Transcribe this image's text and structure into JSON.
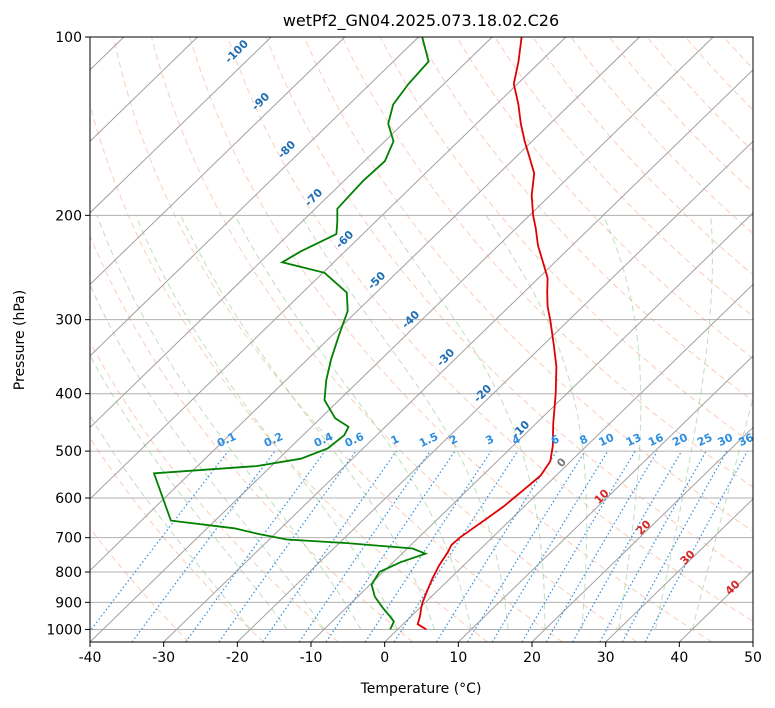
{
  "chart_data": {
    "type": "skew-t",
    "title": "wetPf2_GN04.2025.073.18.02.C26",
    "xlabel": "Temperature (°C)",
    "ylabel": "Pressure (hPa)",
    "xlim": [
      -40,
      50
    ],
    "ylim": [
      1050,
      100
    ],
    "y_scale": "log",
    "grid": true,
    "x_ticks": [
      "-40",
      "-30",
      "-20",
      "-10",
      "0",
      "10",
      "20",
      "30",
      "40",
      "50"
    ],
    "y_ticks": [
      "100",
      "200",
      "300",
      "400",
      "500",
      "600",
      "700",
      "800",
      "900",
      "1000"
    ],
    "isotherm_labels": [
      "-100",
      "-90",
      "-80",
      "-70",
      "-60",
      "-50",
      "-40",
      "-30",
      "-20",
      "-10",
      "0",
      "10",
      "20",
      "30",
      "40"
    ],
    "mixing_ratio_labels": [
      "0.1",
      "0.2",
      "0.4",
      "0.6",
      "1",
      "1.5",
      "2",
      "3",
      "4",
      "6",
      "8",
      "10",
      "13",
      "16",
      "20",
      "25",
      "30",
      "36"
    ],
    "mixing_ratio_values": [
      0.1,
      0.2,
      0.4,
      0.6,
      1,
      1.5,
      2,
      3,
      4,
      6,
      8,
      10,
      13,
      16,
      20,
      25,
      30,
      36
    ],
    "series": [
      {
        "color": "#e00000",
        "points": [
          [
            1000,
            3.9
          ],
          [
            980,
            2.0
          ],
          [
            950,
            1.2
          ],
          [
            920,
            0.2
          ],
          [
            900,
            -0.4
          ],
          [
            860,
            -1.4
          ],
          [
            820,
            -2.4
          ],
          [
            780,
            -3.3
          ],
          [
            740,
            -4.0
          ],
          [
            720,
            -4.5
          ],
          [
            700,
            -4.4
          ],
          [
            680,
            -4.0
          ],
          [
            650,
            -3.4
          ],
          [
            620,
            -2.8
          ],
          [
            580,
            -2.4
          ],
          [
            550,
            -2.1
          ],
          [
            520,
            -2.8
          ],
          [
            490,
            -4.6
          ],
          [
            450,
            -7.6
          ],
          [
            400,
            -11.5
          ],
          [
            360,
            -15.2
          ],
          [
            330,
            -18.7
          ],
          [
            300,
            -22.6
          ],
          [
            285,
            -24.8
          ],
          [
            270,
            -26.8
          ],
          [
            255,
            -28.8
          ],
          [
            240,
            -31.6
          ],
          [
            225,
            -34.6
          ],
          [
            210,
            -37.4
          ],
          [
            200,
            -39.5
          ],
          [
            185,
            -42.5
          ],
          [
            170,
            -45.2
          ],
          [
            160,
            -48.0
          ],
          [
            150,
            -51.0
          ],
          [
            140,
            -54.0
          ],
          [
            130,
            -57.0
          ],
          [
            120,
            -60.5
          ],
          [
            110,
            -63.0
          ],
          [
            100,
            -66.0
          ]
        ]
      },
      {
        "color": "#008000",
        "points": [
          [
            1000,
            -1.0
          ],
          [
            970,
            -1.6
          ],
          [
            950,
            -2.9
          ],
          [
            920,
            -5.0
          ],
          [
            880,
            -7.7
          ],
          [
            840,
            -9.8
          ],
          [
            800,
            -10.5
          ],
          [
            770,
            -9.0
          ],
          [
            745,
            -6.8
          ],
          [
            730,
            -9.3
          ],
          [
            715,
            -18.9
          ],
          [
            705,
            -27.6
          ],
          [
            690,
            -32.2
          ],
          [
            675,
            -36.3
          ],
          [
            655,
            -46.0
          ],
          [
            545,
            -54.9
          ],
          [
            530,
            -42.0
          ],
          [
            515,
            -37.0
          ],
          [
            495,
            -34.8
          ],
          [
            470,
            -34.4
          ],
          [
            455,
            -35.0
          ],
          [
            440,
            -38.0
          ],
          [
            410,
            -42.0
          ],
          [
            380,
            -44.5
          ],
          [
            350,
            -46.8
          ],
          [
            320,
            -49.0
          ],
          [
            290,
            -51.3
          ],
          [
            270,
            -54.0
          ],
          [
            250,
            -59.8
          ],
          [
            240,
            -67.0
          ],
          [
            230,
            -66.0
          ],
          [
            215,
            -63.6
          ],
          [
            205,
            -65.2
          ],
          [
            195,
            -67.0
          ],
          [
            185,
            -67.2
          ],
          [
            175,
            -67.4
          ],
          [
            162,
            -67.2
          ],
          [
            150,
            -68.8
          ],
          [
            140,
            -72.0
          ],
          [
            130,
            -74.0
          ],
          [
            120,
            -74.8
          ],
          [
            110,
            -75.2
          ],
          [
            100,
            -79.5
          ]
        ]
      }
    ]
  }
}
